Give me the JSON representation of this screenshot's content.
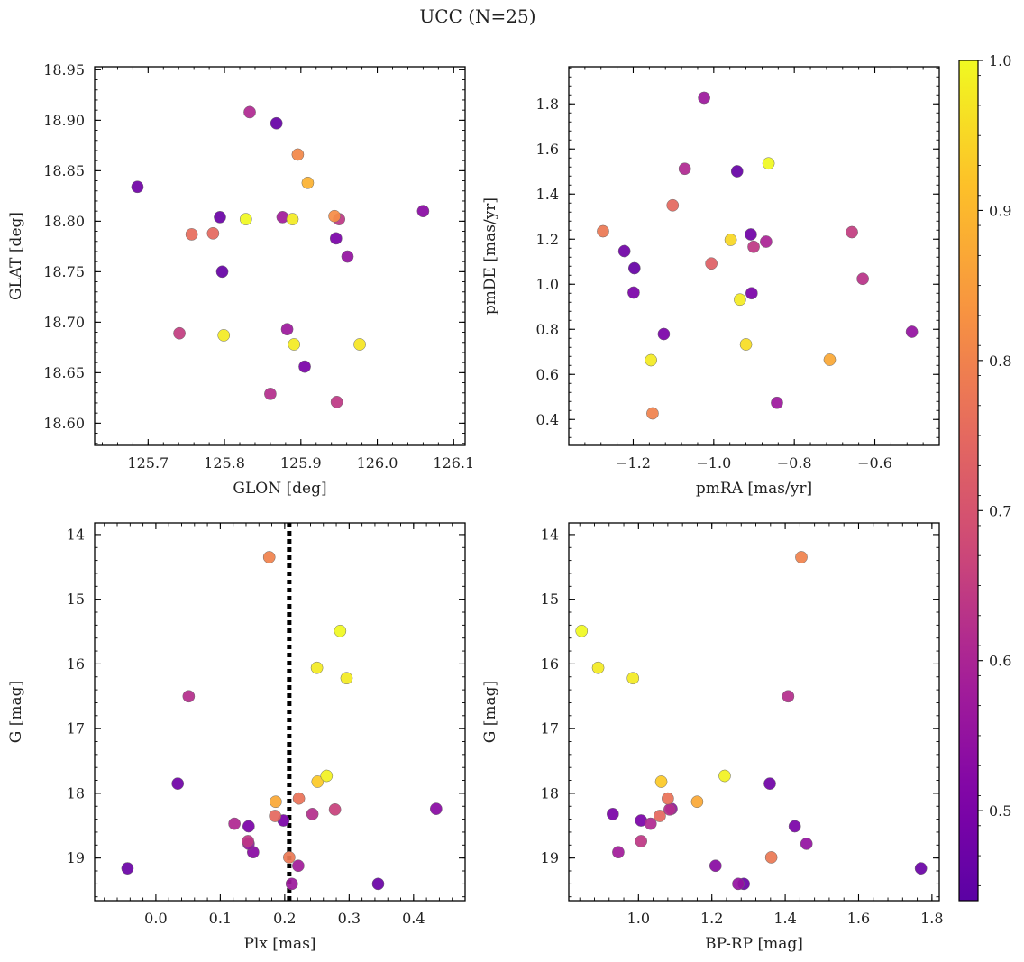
{
  "title": "UCC (N=25)",
  "colorbar": {
    "range": [
      0.44,
      1.0
    ],
    "ticks": [
      0.5,
      0.6,
      0.7,
      0.8,
      0.9,
      1.0
    ],
    "tick_labels": [
      "0.5",
      "0.6",
      "0.7",
      "0.8",
      "0.9",
      "1.0"
    ],
    "colormap": "plasma"
  },
  "chart_data": [
    {
      "type": "scatter",
      "xlabel": "GLON [deg]",
      "ylabel": "GLAT [deg]",
      "xlim": [
        125.63,
        126.115
      ],
      "ylim": [
        18.578,
        18.953
      ],
      "xticks": [
        125.7,
        125.8,
        125.9,
        126.0,
        126.1
      ],
      "xtick_labels": [
        "125.7",
        "125.8",
        "125.9",
        "126.0",
        "126.1"
      ],
      "yticks": [
        18.6,
        18.65,
        18.7,
        18.75,
        18.8,
        18.85,
        18.9,
        18.95
      ],
      "ytick_labels": [
        "18.60",
        "18.65",
        "18.70",
        "18.75",
        "18.80",
        "18.85",
        "18.90",
        "18.95"
      ],
      "points": [
        {
          "x": 125.686,
          "y": 18.834,
          "c": 0.48
        },
        {
          "x": 125.741,
          "y": 18.689,
          "c": 0.65
        },
        {
          "x": 125.757,
          "y": 18.787,
          "c": 0.76
        },
        {
          "x": 125.785,
          "y": 18.788,
          "c": 0.75
        },
        {
          "x": 125.794,
          "y": 18.804,
          "c": 0.47
        },
        {
          "x": 125.797,
          "y": 18.75,
          "c": 0.46
        },
        {
          "x": 125.799,
          "y": 18.687,
          "c": 0.98
        },
        {
          "x": 125.828,
          "y": 18.802,
          "c": 1.0
        },
        {
          "x": 125.833,
          "y": 18.908,
          "c": 0.61
        },
        {
          "x": 125.86,
          "y": 18.629,
          "c": 0.62
        },
        {
          "x": 125.868,
          "y": 18.897,
          "c": 0.46
        },
        {
          "x": 125.876,
          "y": 18.804,
          "c": 0.58
        },
        {
          "x": 125.882,
          "y": 18.693,
          "c": 0.57
        },
        {
          "x": 125.889,
          "y": 18.802,
          "c": 0.98
        },
        {
          "x": 125.891,
          "y": 18.678,
          "c": 0.98
        },
        {
          "x": 125.896,
          "y": 18.866,
          "c": 0.81
        },
        {
          "x": 125.905,
          "y": 18.656,
          "c": 0.5
        },
        {
          "x": 125.909,
          "y": 18.838,
          "c": 0.89
        },
        {
          "x": 125.944,
          "y": 18.805,
          "c": 0.82
        },
        {
          "x": 125.946,
          "y": 18.783,
          "c": 0.5
        },
        {
          "x": 125.947,
          "y": 18.621,
          "c": 0.64
        },
        {
          "x": 125.95,
          "y": 18.802,
          "c": 0.64
        },
        {
          "x": 125.961,
          "y": 18.765,
          "c": 0.55
        },
        {
          "x": 125.977,
          "y": 18.678,
          "c": 0.97
        },
        {
          "x": 126.06,
          "y": 18.81,
          "c": 0.53
        }
      ]
    },
    {
      "type": "scatter",
      "xlabel": "pmRA [mas/yr]",
      "ylabel": "pmDE [mas/yr]",
      "xlim": [
        -1.36,
        -0.44
      ],
      "ylim": [
        0.285,
        1.965
      ],
      "xticks": [
        -1.2,
        -1.0,
        -0.8,
        -0.6
      ],
      "xtick_labels": [
        "−1.2",
        "−1.0",
        "−0.8",
        "−0.6"
      ],
      "yticks": [
        0.4,
        0.6,
        0.8,
        1.0,
        1.2,
        1.4,
        1.6,
        1.8
      ],
      "ytick_labels": [
        "0.4",
        "0.6",
        "0.8",
        "1.0",
        "1.2",
        "1.4",
        "1.6",
        "1.8"
      ],
      "points": [
        {
          "x": -1.275,
          "y": 1.235,
          "c": 0.78
        },
        {
          "x": -1.222,
          "y": 1.147,
          "c": 0.48
        },
        {
          "x": -1.197,
          "y": 1.071,
          "c": 0.46
        },
        {
          "x": -1.199,
          "y": 0.963,
          "c": 0.5
        },
        {
          "x": -1.156,
          "y": 0.663,
          "c": 0.98
        },
        {
          "x": -1.152,
          "y": 0.427,
          "c": 0.8
        },
        {
          "x": -1.124,
          "y": 0.779,
          "c": 0.5
        },
        {
          "x": -1.102,
          "y": 1.35,
          "c": 0.75
        },
        {
          "x": -1.072,
          "y": 1.512,
          "c": 0.61
        },
        {
          "x": -1.024,
          "y": 1.827,
          "c": 0.57
        },
        {
          "x": -1.006,
          "y": 1.092,
          "c": 0.73
        },
        {
          "x": -0.958,
          "y": 1.197,
          "c": 0.95
        },
        {
          "x": -0.942,
          "y": 1.501,
          "c": 0.46
        },
        {
          "x": -0.935,
          "y": 0.932,
          "c": 0.98
        },
        {
          "x": -0.92,
          "y": 0.733,
          "c": 0.96
        },
        {
          "x": -0.908,
          "y": 1.221,
          "c": 0.48
        },
        {
          "x": -0.906,
          "y": 0.96,
          "c": 0.5
        },
        {
          "x": -0.901,
          "y": 1.166,
          "c": 0.64
        },
        {
          "x": -0.87,
          "y": 1.189,
          "c": 0.6
        },
        {
          "x": -0.864,
          "y": 1.536,
          "c": 1.0
        },
        {
          "x": -0.843,
          "y": 0.474,
          "c": 0.57
        },
        {
          "x": -0.712,
          "y": 0.665,
          "c": 0.87
        },
        {
          "x": -0.657,
          "y": 1.231,
          "c": 0.65
        },
        {
          "x": -0.63,
          "y": 1.024,
          "c": 0.63
        },
        {
          "x": -0.508,
          "y": 0.789,
          "c": 0.55
        }
      ]
    },
    {
      "type": "scatter",
      "xlabel": "Plx [mas]",
      "ylabel": "G [mag]",
      "xlim": [
        -0.095,
        0.48
      ],
      "ylim": [
        19.66,
        13.82
      ],
      "y_inverted": true,
      "xticks": [
        0.0,
        0.1,
        0.2,
        0.3,
        0.4
      ],
      "xtick_labels": [
        "0.0",
        "0.1",
        "0.2",
        "0.3",
        "0.4"
      ],
      "yticks": [
        14,
        15,
        16,
        17,
        18,
        19
      ],
      "ytick_labels": [
        "14",
        "15",
        "16",
        "17",
        "18",
        "19"
      ],
      "vline": {
        "x": 0.207,
        "style": "dotted",
        "color": "#000000"
      },
      "points": [
        {
          "x": -0.044,
          "y": 19.16,
          "c": 0.47
        },
        {
          "x": 0.034,
          "y": 17.85,
          "c": 0.48
        },
        {
          "x": 0.051,
          "y": 16.5,
          "c": 0.62
        },
        {
          "x": 0.122,
          "y": 18.47,
          "c": 0.61
        },
        {
          "x": 0.143,
          "y": 18.74,
          "c": 0.64
        },
        {
          "x": 0.144,
          "y": 18.78,
          "c": 0.55
        },
        {
          "x": 0.144,
          "y": 18.51,
          "c": 0.5
        },
        {
          "x": 0.151,
          "y": 18.91,
          "c": 0.53
        },
        {
          "x": 0.176,
          "y": 14.35,
          "c": 0.8
        },
        {
          "x": 0.185,
          "y": 18.35,
          "c": 0.75
        },
        {
          "x": 0.186,
          "y": 18.13,
          "c": 0.87
        },
        {
          "x": 0.198,
          "y": 18.42,
          "c": 0.5
        },
        {
          "x": 0.207,
          "y": 18.99,
          "c": 0.78
        },
        {
          "x": 0.211,
          "y": 19.4,
          "c": 0.57
        },
        {
          "x": 0.221,
          "y": 19.12,
          "c": 0.58
        },
        {
          "x": 0.222,
          "y": 18.08,
          "c": 0.77
        },
        {
          "x": 0.243,
          "y": 18.32,
          "c": 0.62
        },
        {
          "x": 0.25,
          "y": 16.06,
          "c": 0.98
        },
        {
          "x": 0.251,
          "y": 17.82,
          "c": 0.93
        },
        {
          "x": 0.265,
          "y": 17.73,
          "c": 0.99
        },
        {
          "x": 0.278,
          "y": 18.25,
          "c": 0.66
        },
        {
          "x": 0.286,
          "y": 15.49,
          "c": 1.0
        },
        {
          "x": 0.296,
          "y": 16.22,
          "c": 0.98
        },
        {
          "x": 0.345,
          "y": 19.4,
          "c": 0.47
        },
        {
          "x": 0.435,
          "y": 18.24,
          "c": 0.53
        }
      ]
    },
    {
      "type": "scatter",
      "xlabel": "BP-RP [mag]",
      "ylabel": "G [mag]",
      "xlim": [
        0.81,
        1.82
      ],
      "ylim": [
        19.66,
        13.82
      ],
      "y_inverted": true,
      "xticks": [
        1.0,
        1.2,
        1.4,
        1.6,
        1.8
      ],
      "xtick_labels": [
        "1.0",
        "1.2",
        "1.4",
        "1.6",
        "1.8"
      ],
      "yticks": [
        14,
        15,
        16,
        17,
        18,
        19
      ],
      "ytick_labels": [
        "14",
        "15",
        "16",
        "17",
        "18",
        "19"
      ],
      "points": [
        {
          "x": 0.845,
          "y": 15.49,
          "c": 1.0
        },
        {
          "x": 0.89,
          "y": 16.06,
          "c": 0.98
        },
        {
          "x": 0.985,
          "y": 16.22,
          "c": 0.98
        },
        {
          "x": 0.93,
          "y": 18.32,
          "c": 0.5
        },
        {
          "x": 0.945,
          "y": 18.91,
          "c": 0.58
        },
        {
          "x": 1.007,
          "y": 18.42,
          "c": 0.5
        },
        {
          "x": 1.007,
          "y": 18.74,
          "c": 0.64
        },
        {
          "x": 1.033,
          "y": 18.47,
          "c": 0.61
        },
        {
          "x": 1.058,
          "y": 18.35,
          "c": 0.75
        },
        {
          "x": 1.062,
          "y": 17.82,
          "c": 0.93
        },
        {
          "x": 1.08,
          "y": 18.08,
          "c": 0.77
        },
        {
          "x": 1.085,
          "y": 18.25,
          "c": 0.62
        },
        {
          "x": 1.09,
          "y": 18.24,
          "c": 0.55
        },
        {
          "x": 1.16,
          "y": 18.13,
          "c": 0.87
        },
        {
          "x": 1.21,
          "y": 19.12,
          "c": 0.53
        },
        {
          "x": 1.235,
          "y": 17.73,
          "c": 0.99
        },
        {
          "x": 1.272,
          "y": 19.4,
          "c": 0.55
        },
        {
          "x": 1.287,
          "y": 19.4,
          "c": 0.47
        },
        {
          "x": 1.358,
          "y": 17.85,
          "c": 0.48
        },
        {
          "x": 1.362,
          "y": 18.99,
          "c": 0.78
        },
        {
          "x": 1.408,
          "y": 16.5,
          "c": 0.62
        },
        {
          "x": 1.426,
          "y": 18.51,
          "c": 0.5
        },
        {
          "x": 1.444,
          "y": 14.35,
          "c": 0.8
        },
        {
          "x": 1.458,
          "y": 18.78,
          "c": 0.55
        },
        {
          "x": 1.77,
          "y": 19.16,
          "c": 0.47
        }
      ]
    }
  ]
}
